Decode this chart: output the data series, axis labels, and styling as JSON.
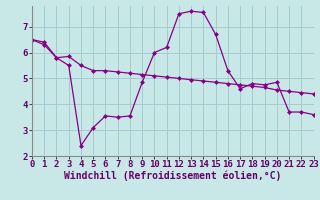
{
  "line1_x": [
    0,
    1,
    2,
    3,
    4,
    5,
    6,
    7,
    8,
    9,
    10,
    11,
    12,
    13,
    14,
    15,
    16,
    17,
    18,
    19,
    20,
    21,
    22,
    23
  ],
  "line1_y": [
    6.5,
    6.3,
    5.8,
    5.85,
    5.5,
    5.3,
    5.3,
    5.25,
    5.2,
    5.15,
    5.1,
    5.05,
    5.0,
    4.95,
    4.9,
    4.85,
    4.8,
    4.75,
    4.7,
    4.65,
    4.55,
    4.5,
    4.45,
    4.4
  ],
  "line2_x": [
    0,
    1,
    2,
    3,
    4,
    5,
    6,
    7,
    8,
    9,
    10,
    11,
    12,
    13,
    14,
    15,
    16,
    17,
    18,
    19,
    20,
    21,
    22,
    23
  ],
  "line2_y": [
    6.5,
    6.4,
    5.8,
    5.5,
    2.4,
    3.1,
    3.55,
    3.5,
    3.55,
    4.85,
    6.0,
    6.2,
    7.5,
    7.6,
    7.55,
    6.7,
    5.3,
    4.6,
    4.8,
    4.75,
    4.85,
    3.7,
    3.7,
    3.6
  ],
  "line_color": "#880088",
  "bg_color": "#c8e8e8",
  "grid_color": "#a0c8c8",
  "xlabel": "Windchill (Refroidissement éolien,°C)",
  "xlim": [
    0,
    23
  ],
  "ylim": [
    2,
    7.8
  ],
  "yticks": [
    2,
    3,
    4,
    5,
    6,
    7
  ],
  "xticks": [
    0,
    1,
    2,
    3,
    4,
    5,
    6,
    7,
    8,
    9,
    10,
    11,
    12,
    13,
    14,
    15,
    16,
    17,
    18,
    19,
    20,
    21,
    22,
    23
  ],
  "tick_fontsize": 6.5,
  "xlabel_fontsize": 7,
  "marker": "D",
  "markersize": 2,
  "linewidth": 0.9
}
